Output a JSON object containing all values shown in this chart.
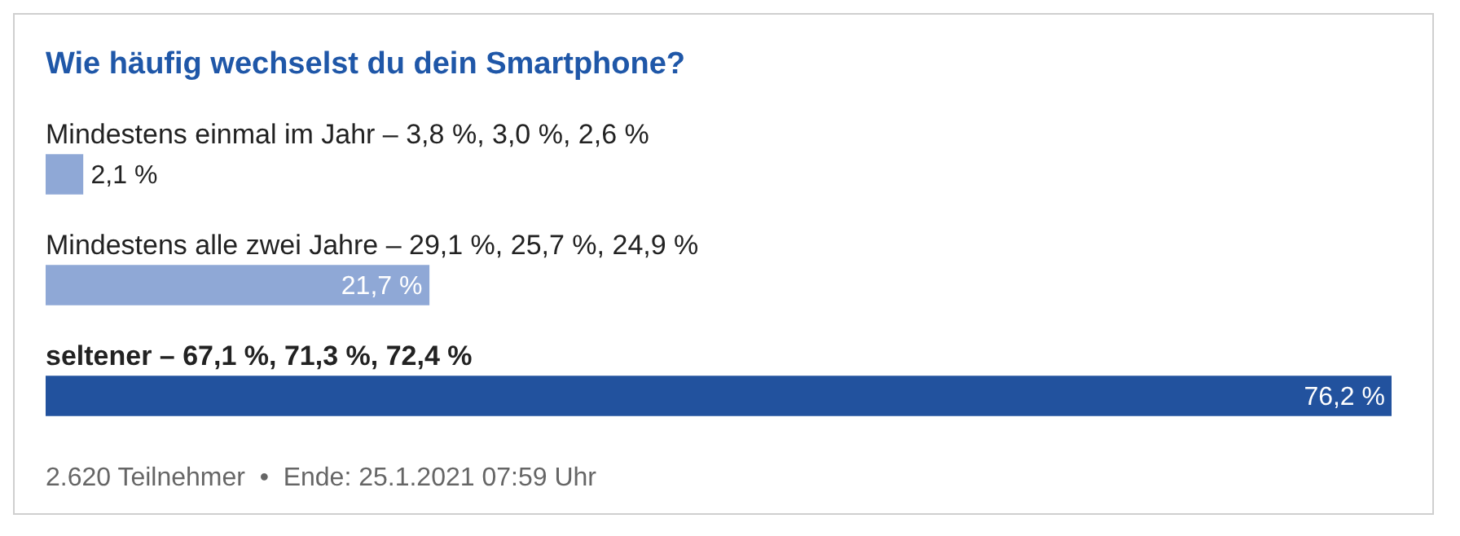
{
  "chart_data": {
    "type": "bar",
    "orientation": "horizontal",
    "title": "Wie häufig wechselst du dein Smartphone?",
    "categories": [
      "Mindestens einmal im Jahr – 3,8 %, 3,0 %, 2,6 %",
      "Mindestens alle zwei Jahre – 29,1 %, 25,7 %, 24,9 %",
      "seltener – 67,1 %, 71,3 %, 72,4 %"
    ],
    "values": [
      2.1,
      21.7,
      76.2
    ],
    "colors": [
      "#8fa8d6",
      "#8fa8d6",
      "#22529e"
    ],
    "value_labels": [
      "2,1 %",
      "21,7 %",
      "76,2 %"
    ],
    "annotations": [
      "2.620 Teilnehmer  •  Ende: 25.1.2021 07:59 Uhr"
    ]
  }
}
